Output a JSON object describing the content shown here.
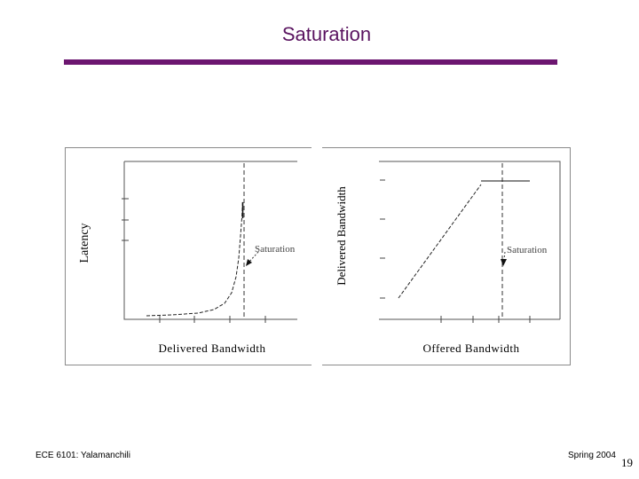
{
  "slide": {
    "title": "Saturation",
    "footer_left": "ECE 6101: Yalamanchili",
    "footer_right": "Spring 2004",
    "page_number": "19",
    "accent_color": "#6c1670",
    "title_color": "#5a1460"
  },
  "figure": {
    "left_panel": {
      "y_label": "Latency",
      "x_label": "Delivered Bandwidth",
      "annotation": "Saturation"
    },
    "right_panel": {
      "y_label": "Delivered Bandwidth",
      "x_label": "Offered Bandwidth",
      "annotation": "Saturation"
    }
  }
}
